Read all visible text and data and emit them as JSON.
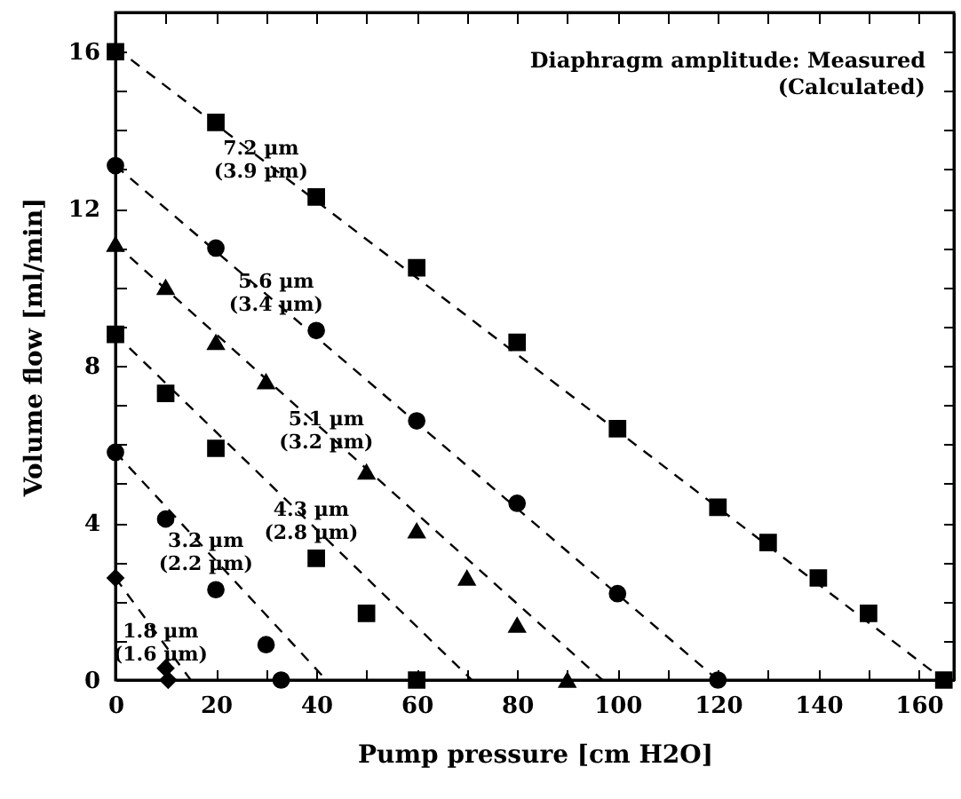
{
  "chart_data": {
    "type": "scatter",
    "xlabel": "Pump pressure [cm H2O]",
    "ylabel": "Volume flow [ml/min]",
    "annotations": [
      "Diaphragm amplitude:   Measured\n(Calculated)",
      {
        "text": "7.2 µm\n(3.9 µm)",
        "x": 29,
        "y": 13.3
      },
      {
        "text": "5.6 µm\n(3.4 µm)",
        "x": 32,
        "y": 9.9
      },
      {
        "text": "5.1 µm\n(3.2 µm)",
        "x": 42,
        "y": 6.4
      },
      {
        "text": "4.3 µm\n(2.8 µm)",
        "x": 39,
        "y": 4.1
      },
      {
        "text": "3.2 µm\n(2.2 µm)",
        "x": 18,
        "y": 3.3
      },
      {
        "text": "1.8 µm\n(1.6 µm)",
        "x": 9,
        "y": 1.0
      }
    ],
    "xlim": [
      0,
      167
    ],
    "ylim": [
      0,
      17
    ],
    "xticks": [
      0,
      {
        "value": 10,
        "label": null
      },
      20,
      {
        "value": 30,
        "label": null
      },
      40,
      {
        "value": 50,
        "label": null
      },
      60,
      {
        "value": 70,
        "label": null
      },
      80,
      {
        "value": 90,
        "label": null
      },
      100,
      {
        "value": 110,
        "label": null
      },
      120,
      {
        "value": 130,
        "label": null
      },
      140,
      {
        "value": 150,
        "label": null
      },
      160
    ],
    "yticks": [
      0,
      {
        "value": 1,
        "label": null
      },
      {
        "value": 2,
        "label": null
      },
      {
        "value": 3,
        "label": null
      },
      4,
      {
        "value": 5,
        "label": null
      },
      {
        "value": 6,
        "label": null
      },
      {
        "value": 7,
        "label": null
      },
      8,
      {
        "value": 9,
        "label": null
      },
      {
        "value": 10,
        "label": null
      },
      {
        "value": 11,
        "label": null
      },
      12,
      {
        "value": 13,
        "label": null
      },
      {
        "value": 14,
        "label": null
      },
      {
        "value": 15,
        "label": null
      },
      16
    ],
    "grid": false,
    "series": [
      {
        "marker": "square",
        "color": "#000000",
        "x": [
          0,
          20,
          40,
          60,
          80,
          100,
          120,
          130,
          140,
          150,
          165
        ],
        "values": [
          16,
          14.2,
          12.3,
          10.5,
          8.6,
          6.4,
          4.4,
          3.5,
          2.6,
          1.7,
          0
        ]
      },
      {
        "marker": "circle",
        "color": "#000000",
        "x": [
          0,
          20,
          40,
          60,
          80,
          100,
          120
        ],
        "values": [
          13.1,
          11.0,
          8.9,
          6.6,
          4.5,
          2.2,
          0
        ]
      },
      {
        "marker": "triangle",
        "color": "#000000",
        "x": [
          0,
          10,
          20,
          30,
          50,
          60,
          70,
          80,
          90
        ],
        "values": [
          11.1,
          10.0,
          8.6,
          7.6,
          5.3,
          3.8,
          2.6,
          1.4,
          0
        ]
      },
      {
        "marker": "square",
        "color": "#000000",
        "x": [
          0,
          10,
          20,
          40,
          50,
          60
        ],
        "values": [
          8.8,
          7.3,
          5.9,
          3.1,
          1.7,
          0
        ]
      },
      {
        "marker": "circle",
        "color": "#000000",
        "x": [
          0,
          10,
          20,
          30,
          33
        ],
        "values": [
          5.8,
          4.1,
          2.3,
          0.9,
          0
        ]
      },
      {
        "marker": "diamond",
        "color": "#000000",
        "x": [
          0,
          10,
          10.5
        ],
        "values": [
          2.6,
          0.3,
          0
        ]
      },
      {
        "type": "line",
        "line_style": "dashed",
        "color": "#000000",
        "x": [
          0,
          165
        ],
        "values": [
          16.1,
          0
        ]
      },
      {
        "type": "line",
        "line_style": "dashed",
        "color": "#000000",
        "x": [
          0,
          120
        ],
        "values": [
          13.1,
          0
        ]
      },
      {
        "type": "line",
        "line_style": "dashed",
        "color": "#000000",
        "x": [
          0,
          97
        ],
        "values": [
          11.1,
          0
        ]
      },
      {
        "type": "line",
        "line_style": "dashed",
        "color": "#000000",
        "x": [
          0,
          71
        ],
        "values": [
          8.8,
          0
        ]
      },
      {
        "type": "line",
        "line_style": "dashed",
        "color": "#000000",
        "x": [
          0,
          42
        ],
        "values": [
          5.8,
          0
        ]
      },
      {
        "type": "line",
        "line_style": "dashed",
        "color": "#000000",
        "x": [
          0,
          15
        ],
        "values": [
          2.6,
          0
        ]
      }
    ]
  }
}
